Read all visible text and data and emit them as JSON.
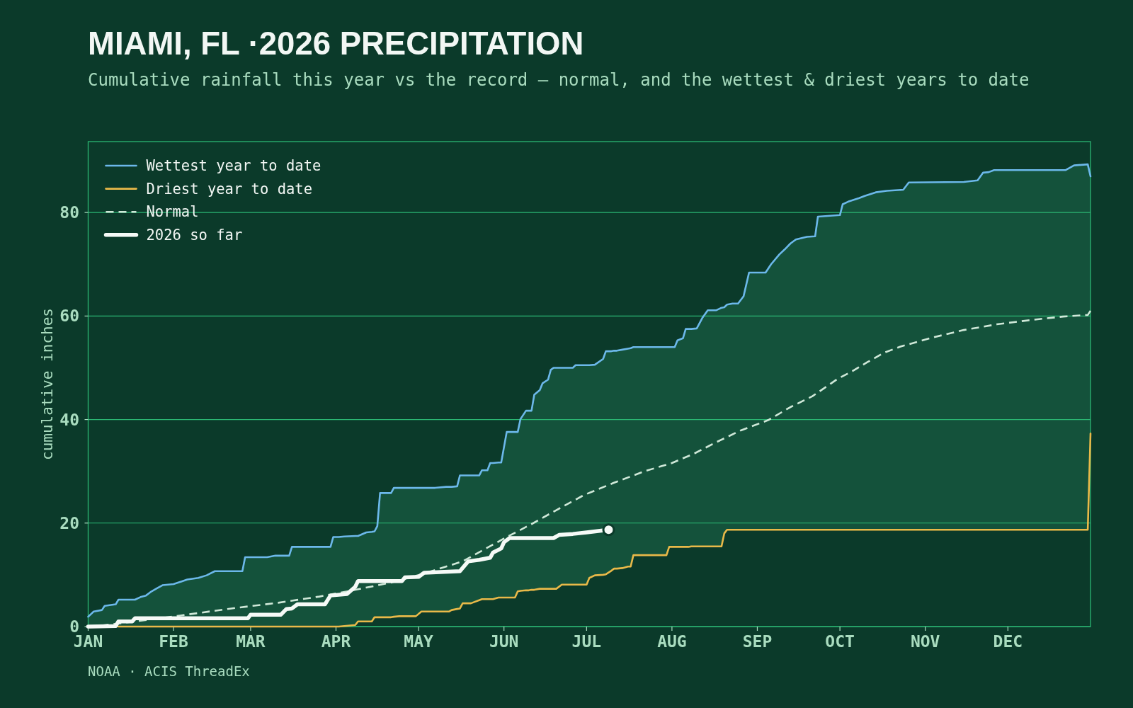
{
  "chart_data": {
    "type": "line",
    "title": "MIAMI, FL ·2026 PRECIPITATION",
    "subtitle": "Cumulative rainfall this year vs the record — normal, and the wettest & driest years to date",
    "ylabel": "cumulative inches",
    "annotations": [
      "NOAA · ACIS ThreadEx"
    ],
    "xlim": [
      "2026-01-01",
      "2026-12-31"
    ],
    "xticks": [
      {
        "value": "2026-01-01",
        "label": "JAN"
      },
      {
        "value": "2026-02-01",
        "label": "FEB"
      },
      {
        "value": "2026-03-01",
        "label": "MAR"
      },
      {
        "value": "2026-04-01",
        "label": "APR"
      },
      {
        "value": "2026-05-01",
        "label": "MAY"
      },
      {
        "value": "2026-06-01",
        "label": "JUN"
      },
      {
        "value": "2026-07-01",
        "label": "JUL"
      },
      {
        "value": "2026-08-01",
        "label": "AUG"
      },
      {
        "value": "2026-09-01",
        "label": "SEP"
      },
      {
        "value": "2026-10-01",
        "label": "OCT"
      },
      {
        "value": "2026-11-01",
        "label": "NOV"
      },
      {
        "value": "2026-12-01",
        "label": "DEC"
      }
    ],
    "ylim": [
      0,
      93.7
    ],
    "yticks": [
      0,
      20,
      40,
      60,
      80
    ],
    "grid": "y",
    "legend": "top left",
    "x": [
      "2026-01-01",
      "2026-01-03",
      "2026-01-06",
      "2026-01-07",
      "2026-01-11",
      "2026-01-12",
      "2026-01-18",
      "2026-01-20",
      "2026-01-22",
      "2026-01-24",
      "2026-01-26",
      "2026-01-28",
      "2026-02-01",
      "2026-02-06",
      "2026-02-10",
      "2026-02-13",
      "2026-02-16",
      "2026-02-26",
      "2026-02-27",
      "2026-03-07",
      "2026-03-10",
      "2026-03-15",
      "2026-03-16",
      "2026-03-30",
      "2026-03-31",
      "2026-04-02",
      "2026-04-04",
      "2026-04-08",
      "2026-04-09",
      "2026-04-12",
      "2026-04-14",
      "2026-04-15",
      "2026-04-16",
      "2026-04-17",
      "2026-04-21",
      "2026-04-22",
      "2026-04-24",
      "2026-04-30",
      "2026-05-02",
      "2026-05-07",
      "2026-05-11",
      "2026-05-12",
      "2026-05-13",
      "2026-05-15",
      "2026-05-16",
      "2026-05-17",
      "2026-05-20",
      "2026-05-21",
      "2026-05-23",
      "2026-05-24",
      "2026-05-26",
      "2026-05-27",
      "2026-05-28",
      "2026-05-30",
      "2026-05-31",
      "2026-06-02",
      "2026-06-05",
      "2026-06-06",
      "2026-06-07",
      "2026-06-09",
      "2026-06-10",
      "2026-06-11",
      "2026-06-12",
      "2026-06-14",
      "2026-06-15",
      "2026-06-17",
      "2026-06-18",
      "2026-06-19",
      "2026-06-20",
      "2026-06-22",
      "2026-06-26",
      "2026-06-27",
      "2026-07-01",
      "2026-07-02",
      "2026-07-04",
      "2026-07-07",
      "2026-07-08",
      "2026-07-10",
      "2026-07-11",
      "2026-07-12",
      "2026-07-14",
      "2026-07-16",
      "2026-07-17",
      "2026-07-18",
      "2026-07-30",
      "2026-07-31",
      "2026-08-02",
      "2026-08-03",
      "2026-08-05",
      "2026-08-06",
      "2026-08-07",
      "2026-08-08",
      "2026-08-10",
      "2026-08-12",
      "2026-08-14",
      "2026-08-17",
      "2026-08-19",
      "2026-08-20",
      "2026-08-21",
      "2026-08-23",
      "2026-08-25",
      "2026-08-27",
      "2026-08-29",
      "2026-09-04",
      "2026-09-06",
      "2026-09-09",
      "2026-09-11",
      "2026-09-13",
      "2026-09-15",
      "2026-09-19",
      "2026-09-22",
      "2026-09-23",
      "2026-10-01",
      "2026-10-02",
      "2026-10-04",
      "2026-10-08",
      "2026-10-10",
      "2026-10-14",
      "2026-10-18",
      "2026-10-24",
      "2026-10-26",
      "2026-11-15",
      "2026-11-20",
      "2026-11-22",
      "2026-11-24",
      "2026-11-26",
      "2026-12-22",
      "2026-12-25",
      "2026-12-30",
      "2026-12-31"
    ],
    "series": [
      {
        "name": "Wettest year to date",
        "color": "#6cb8ea",
        "values": [
          1.9,
          2.9,
          3.2,
          4.0,
          4.3,
          5.2,
          5.2,
          5.7,
          6.0,
          6.8,
          7.4,
          8.0,
          8.2,
          9.1,
          9.4,
          9.9,
          10.7,
          10.7,
          13.4,
          13.4,
          13.7,
          13.7,
          15.4,
          15.4,
          17.3,
          17.3,
          17.4,
          17.5,
          17.5,
          18.2,
          18.3,
          18.4,
          19.4,
          25.8,
          25.8,
          26.8,
          26.8,
          26.8,
          26.8,
          26.8,
          27.0,
          27.0,
          27.0,
          27.1,
          29.2,
          29.2,
          29.2,
          29.2,
          29.2,
          30.2,
          30.2,
          31.6,
          31.6,
          31.7,
          31.7,
          37.6,
          37.6,
          37.6,
          40.1,
          41.7,
          41.7,
          41.7,
          44.8,
          45.7,
          47.0,
          47.7,
          49.6,
          50.0,
          50.0,
          50.0,
          50.0,
          50.5,
          50.5,
          50.5,
          50.6,
          51.7,
          53.2,
          53.2,
          53.3,
          53.3,
          53.5,
          53.7,
          53.8,
          54.0,
          54.0,
          54.0,
          54.0,
          55.3,
          55.7,
          57.5,
          57.5,
          57.5,
          57.6,
          59.6,
          61.1,
          61.1,
          61.6,
          61.7,
          62.2,
          62.4,
          62.4,
          63.8,
          68.4,
          68.4,
          70.0,
          71.9,
          72.9,
          74.0,
          74.8,
          75.3,
          75.4,
          79.2,
          79.5,
          81.6,
          82.1,
          82.8,
          83.2,
          83.9,
          84.2,
          84.4,
          85.8,
          85.9,
          86.2,
          87.7,
          87.8,
          88.2,
          88.2,
          89.1,
          89.3,
          87.0
        ],
        "lower": [
          0,
          0,
          0,
          0,
          0,
          0,
          0,
          0,
          0,
          0,
          0,
          0,
          0,
          0,
          0,
          0,
          0,
          0,
          0,
          0,
          0,
          0,
          0,
          0,
          0,
          0,
          0.1,
          0.3,
          1.0,
          1.0,
          1.0,
          1.8,
          1.8,
          1.8,
          1.8,
          1.9,
          2.0,
          2.0,
          2.9,
          2.9,
          2.9,
          2.9,
          3.2,
          3.4,
          3.5,
          4.5,
          4.5,
          4.7,
          5.1,
          5.3,
          5.3,
          5.3,
          5.3,
          5.6,
          5.6,
          5.6,
          5.6,
          6.8,
          6.9,
          7.0,
          7.0,
          7.1,
          7.1,
          7.3,
          7.3,
          7.3,
          7.3,
          7.3,
          7.3,
          8.1,
          8.1,
          8.1,
          8.1,
          9.4,
          9.9,
          10.0,
          10.1,
          10.8,
          11.2,
          11.2,
          11.3,
          11.6,
          11.6,
          13.8,
          13.8,
          15.4,
          15.4,
          15.4,
          15.4,
          15.4,
          15.4,
          15.5,
          15.5,
          15.5,
          15.5,
          15.5,
          15.5,
          18.0,
          18.7,
          18.7,
          18.7,
          18.7,
          18.7,
          18.7,
          18.7,
          18.7,
          18.7,
          18.7,
          18.7,
          18.7,
          18.7,
          18.7,
          18.7,
          18.7,
          18.7,
          18.7,
          18.7,
          18.7,
          18.7,
          18.7,
          18.7,
          18.7,
          18.7,
          18.7,
          18.7,
          18.7,
          18.7,
          18.7,
          18.7,
          37.3
        ],
        "upper": [
          1.9,
          2.9,
          3.2,
          4.0,
          4.3,
          5.2,
          5.2,
          5.7,
          6.0,
          6.8,
          7.4,
          8.0,
          8.2,
          9.1,
          9.4,
          9.9,
          10.7,
          10.7,
          13.4,
          13.4,
          13.7,
          13.7,
          15.4,
          15.4,
          17.3,
          17.3,
          17.4,
          17.5,
          17.5,
          18.2,
          18.3,
          18.4,
          19.4,
          25.8,
          25.8,
          26.8,
          26.8,
          26.8,
          26.8,
          26.8,
          27.0,
          27.0,
          27.0,
          27.1,
          29.2,
          29.2,
          29.2,
          29.2,
          29.2,
          30.2,
          30.2,
          31.6,
          31.6,
          31.7,
          31.7,
          37.6,
          37.6,
          37.6,
          40.1,
          41.7,
          41.7,
          41.7,
          44.8,
          45.7,
          47.0,
          47.7,
          49.6,
          50.0,
          50.0,
          50.0,
          50.0,
          50.5,
          50.5,
          50.5,
          50.6,
          51.7,
          53.2,
          53.2,
          53.3,
          53.3,
          53.5,
          53.7,
          53.8,
          54.0,
          54.0,
          54.0,
          54.0,
          55.3,
          55.7,
          57.5,
          57.5,
          57.5,
          57.6,
          59.6,
          61.1,
          61.1,
          61.6,
          61.7,
          62.2,
          62.4,
          62.4,
          63.8,
          68.4,
          68.4,
          70.0,
          71.9,
          72.9,
          74.0,
          74.8,
          75.3,
          75.4,
          79.2,
          79.5,
          81.6,
          82.1,
          82.8,
          83.2,
          83.9,
          84.2,
          84.4,
          85.8,
          85.9,
          86.2,
          87.7,
          87.8,
          88.2,
          88.2,
          89.1,
          89.3,
          87.0
        ]
      },
      {
        "name": "Driest year to date",
        "color": "#e9b949",
        "values": [
          null,
          null,
          null,
          null,
          null,
          0,
          0,
          0,
          0,
          0,
          0,
          0,
          0,
          0,
          0,
          0,
          0,
          0,
          0,
          0,
          0,
          0,
          0,
          0,
          0,
          0,
          0.1,
          0.3,
          1.0,
          1.0,
          1.0,
          1.8,
          1.8,
          1.8,
          1.8,
          1.9,
          2.0,
          2.0,
          2.9,
          2.9,
          2.9,
          2.9,
          3.2,
          3.4,
          3.5,
          4.5,
          4.5,
          4.7,
          5.1,
          5.3,
          5.3,
          5.3,
          5.3,
          5.6,
          5.6,
          5.6,
          5.6,
          6.8,
          6.9,
          7.0,
          7.0,
          7.1,
          7.1,
          7.3,
          7.3,
          7.3,
          7.3,
          7.3,
          7.3,
          8.1,
          8.1,
          8.1,
          8.1,
          9.4,
          9.9,
          10.0,
          10.1,
          10.8,
          11.2,
          11.2,
          11.3,
          11.6,
          11.6,
          13.8,
          13.8,
          15.4,
          15.4,
          15.4,
          15.4,
          15.4,
          15.4,
          15.5,
          15.5,
          15.5,
          15.5,
          15.5,
          15.5,
          18.0,
          18.7,
          18.7,
          18.7,
          18.7,
          18.7,
          18.7,
          18.7,
          18.7,
          18.7,
          18.7,
          18.7,
          18.7,
          18.7,
          18.7,
          18.7,
          18.7,
          18.7,
          18.7,
          18.7,
          18.7,
          18.7,
          18.7,
          18.7,
          18.7,
          18.7,
          18.7,
          18.7,
          18.7,
          18.7,
          18.7,
          18.7,
          37.3
        ]
      },
      {
        "name": "Normal",
        "color": "#cfe8d8",
        "line_style": "dashed",
        "x": [
          "2026-01-01",
          "2026-01-06",
          "2026-01-30",
          "2026-02-22",
          "2026-03-11",
          "2026-03-26",
          "2026-04-08",
          "2026-04-21",
          "2026-05-02",
          "2026-05-17",
          "2026-06-02",
          "2026-06-11",
          "2026-06-20",
          "2026-06-30",
          "2026-07-11",
          "2026-07-22",
          "2026-08-01",
          "2026-08-09",
          "2026-08-17",
          "2026-08-26",
          "2026-09-05",
          "2026-09-13",
          "2026-09-21",
          "2026-09-30",
          "2026-10-06",
          "2026-10-11",
          "2026-10-17",
          "2026-10-23",
          "2026-11-04",
          "2026-11-15",
          "2026-11-27",
          "2026-12-09",
          "2026-12-21",
          "2026-12-30",
          "2026-12-31"
        ],
        "values": [
          0.0,
          0.2,
          1.8,
          3.5,
          4.6,
          5.8,
          7.1,
          8.5,
          10.1,
          12.6,
          17.3,
          19.8,
          22.5,
          25.4,
          27.8,
          30.0,
          31.6,
          33.4,
          35.6,
          37.9,
          39.9,
          42.4,
          44.5,
          47.8,
          49.5,
          51.1,
          52.9,
          54.1,
          55.9,
          57.3,
          58.4,
          59.2,
          59.9,
          60.2,
          61.0
        ]
      },
      {
        "name": "2026 so far",
        "color": "#f6faf7",
        "x": [
          "2026-01-01",
          "2026-01-11",
          "2026-01-12",
          "2026-01-17",
          "2026-01-18",
          "2026-02-28",
          "2026-03-01",
          "2026-03-12",
          "2026-03-14",
          "2026-03-16",
          "2026-03-18",
          "2026-03-28",
          "2026-03-30",
          "2026-04-05",
          "2026-04-08",
          "2026-04-09",
          "2026-04-25",
          "2026-04-26",
          "2026-05-01",
          "2026-05-03",
          "2026-05-16",
          "2026-05-19",
          "2026-05-23",
          "2026-05-27",
          "2026-05-28",
          "2026-05-31",
          "2026-06-01",
          "2026-06-03",
          "2026-06-19",
          "2026-06-21",
          "2026-06-26",
          "2026-07-01",
          "2026-07-09"
        ],
        "values": [
          0.0,
          0.1,
          1.0,
          1.0,
          1.6,
          1.6,
          2.3,
          2.3,
          3.4,
          3.5,
          4.3,
          4.3,
          6.0,
          6.3,
          7.7,
          8.8,
          8.8,
          9.5,
          9.6,
          10.4,
          10.7,
          12.6,
          12.9,
          13.3,
          14.3,
          15.1,
          16.3,
          17.1,
          17.1,
          17.7,
          17.9,
          18.2,
          18.7
        ]
      },
      {
        "type": "scatter",
        "marker": "circle",
        "color": "#f6faf7",
        "x": [
          "2026-07-09"
        ],
        "values": [
          18.7
        ]
      }
    ]
  }
}
